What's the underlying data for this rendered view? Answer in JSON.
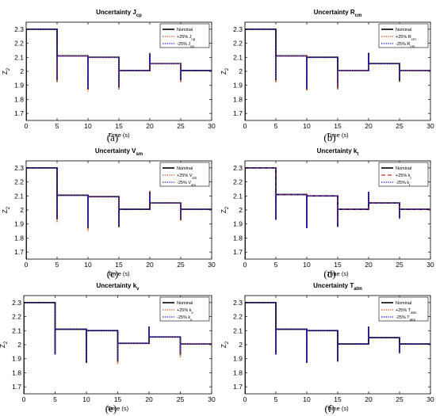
{
  "figure": {
    "colors": {
      "nominal": "#000000",
      "plus25": "#c8501e",
      "minus25": "#1515e0",
      "plus25_dashed": "#c0281e"
    }
  },
  "chart_data": [
    {
      "type": "line",
      "id": "a",
      "title": "Uncertainty J",
      "title_sub": "cp",
      "xlabel": "Time (s)",
      "ylabel": "Z",
      "ylabel_sub": "2",
      "caption": "(a)",
      "xlim": [
        0,
        30
      ],
      "ylim": [
        1.65,
        2.35
      ],
      "xticks": [
        "0",
        "5",
        "10",
        "15",
        "20",
        "25",
        "30"
      ],
      "yticks": [
        "1.7",
        "1.8",
        "1.9",
        "2",
        "2.1",
        "2.2",
        "2.3"
      ],
      "grid": false,
      "legend_position": "top-right",
      "series": [
        {
          "name": "Nominal",
          "name_sub": "",
          "style": "solid"
        },
        {
          "name": "+25% J",
          "name_sub": "cp",
          "style": "dotted"
        },
        {
          "name": "-25% J",
          "name_sub": "cp",
          "style": "dotted"
        }
      ],
      "levels": [
        [
          0,
          2.3
        ],
        [
          5,
          2.11
        ],
        [
          10,
          2.1
        ],
        [
          15,
          2.005
        ],
        [
          20,
          2.055
        ],
        [
          25,
          2.005
        ],
        [
          30,
          2.005
        ]
      ],
      "transients": [
        {
          "t": 5,
          "nominal": 1.93,
          "plus25": 1.92,
          "minus25": 1.94
        },
        {
          "t": 10,
          "nominal": 1.87,
          "plus25": 1.855,
          "minus25": 1.88
        },
        {
          "t": 15,
          "nominal": 1.88,
          "plus25": 1.87,
          "minus25": 1.89
        },
        {
          "t": 20,
          "nominal": 2.13,
          "plus25": 2.135,
          "minus25": 2.125
        },
        {
          "t": 25,
          "nominal": 1.93,
          "plus25": 1.92,
          "minus25": 1.94
        }
      ],
      "start_low": 1.65
    },
    {
      "type": "line",
      "id": "b",
      "title": "Uncertainty R",
      "title_sub": "cm",
      "xlabel": "Time (s)",
      "ylabel": "Z",
      "ylabel_sub": "2",
      "caption": "(b)",
      "xlim": [
        0,
        30
      ],
      "ylim": [
        1.65,
        2.35
      ],
      "xticks": [
        "0",
        "5",
        "10",
        "15",
        "20",
        "25",
        "30"
      ],
      "yticks": [
        "1.7",
        "1.8",
        "1.9",
        "2",
        "2.1",
        "2.2",
        "2.3"
      ],
      "grid": false,
      "legend_position": "top-right",
      "series": [
        {
          "name": "Nominal",
          "name_sub": "",
          "style": "solid"
        },
        {
          "name": "+25% R",
          "name_sub": "cm",
          "style": "dotted"
        },
        {
          "name": "-25% R",
          "name_sub": "cm",
          "style": "dotted"
        }
      ],
      "levels": [
        [
          0,
          2.3
        ],
        [
          5,
          2.11
        ],
        [
          10,
          2.1
        ],
        [
          15,
          2.005
        ],
        [
          20,
          2.055
        ],
        [
          25,
          2.005
        ],
        [
          30,
          2.005
        ]
      ],
      "transients": [
        {
          "t": 5,
          "nominal": 1.93,
          "plus25": 1.92,
          "minus25": 1.94
        },
        {
          "t": 10,
          "nominal": 1.87,
          "plus25": 1.86,
          "minus25": 1.88
        },
        {
          "t": 15,
          "nominal": 1.88,
          "plus25": 1.87,
          "minus25": 1.89
        },
        {
          "t": 20,
          "nominal": 2.13,
          "plus25": 2.135,
          "minus25": 2.125
        },
        {
          "t": 25,
          "nominal": 1.93,
          "plus25": 1.92,
          "minus25": 1.94
        }
      ],
      "start_low": 1.65
    },
    {
      "type": "line",
      "id": "c",
      "title": "Uncertainty V",
      "title_sub": "sm",
      "xlabel": "Time (s)",
      "ylabel": "Z",
      "ylabel_sub": "2",
      "caption": "(c)",
      "xlim": [
        0,
        30
      ],
      "ylim": [
        1.65,
        2.35
      ],
      "xticks": [
        "0",
        "5",
        "10",
        "15",
        "20",
        "25",
        "30"
      ],
      "yticks": [
        "1.7",
        "1.8",
        "1.9",
        "2",
        "2.1",
        "2.2",
        "2.3"
      ],
      "grid": false,
      "legend_position": "top-right",
      "series": [
        {
          "name": "Nominal",
          "name_sub": "",
          "style": "solid"
        },
        {
          "name": "+25% V",
          "name_sub": "sm",
          "style": "dotted"
        },
        {
          "name": "-25% V",
          "name_sub": "sm",
          "style": "dotted"
        }
      ],
      "levels": [
        [
          0,
          2.3
        ],
        [
          5,
          2.105
        ],
        [
          10,
          2.095
        ],
        [
          15,
          2.005
        ],
        [
          20,
          2.05
        ],
        [
          25,
          2.005
        ],
        [
          30,
          2.005
        ]
      ],
      "transients": [
        {
          "t": 5,
          "nominal": 1.93,
          "plus25": 1.91,
          "minus25": 1.94
        },
        {
          "t": 10,
          "nominal": 1.87,
          "plus25": 1.85,
          "minus25": 1.88
        },
        {
          "t": 15,
          "nominal": 1.88,
          "plus25": 1.87,
          "minus25": 1.89
        },
        {
          "t": 20,
          "nominal": 2.13,
          "plus25": 2.14,
          "minus25": 2.12
        },
        {
          "t": 25,
          "nominal": 1.93,
          "plus25": 1.92,
          "minus25": 1.94
        }
      ],
      "start_low": 1.65
    },
    {
      "type": "line",
      "id": "d",
      "title": "Uncertainty k",
      "title_sub": "t",
      "xlabel": "Time (s)",
      "ylabel": "Z",
      "ylabel_sub": "2",
      "caption": "(d)",
      "xlim": [
        0,
        30
      ],
      "ylim": [
        1.65,
        2.35
      ],
      "xticks": [
        "0",
        "5",
        "10",
        "15",
        "20",
        "25",
        "30"
      ],
      "yticks": [
        "1.7",
        "1.8",
        "1.9",
        "2",
        "2.1",
        "2.2",
        "2.3"
      ],
      "grid": false,
      "legend_position": "top-right",
      "series": [
        {
          "name": "Nominal",
          "name_sub": "",
          "style": "solid"
        },
        {
          "name": "+25% k",
          "name_sub": "t",
          "style": "dashed"
        },
        {
          "name": "-25% k",
          "name_sub": "t",
          "style": "dotted"
        }
      ],
      "levels": [
        [
          0,
          2.3
        ],
        [
          5,
          2.11
        ],
        [
          10,
          2.1
        ],
        [
          15,
          2.005
        ],
        [
          20,
          2.05
        ],
        [
          25,
          2.005
        ],
        [
          30,
          2.005
        ]
      ],
      "transients": [
        {
          "t": 5,
          "nominal": 1.93,
          "plus25": 1.93,
          "minus25": 1.93
        },
        {
          "t": 10,
          "nominal": 1.87,
          "plus25": 1.87,
          "minus25": 1.87
        },
        {
          "t": 15,
          "nominal": 1.88,
          "plus25": 1.88,
          "minus25": 1.88
        },
        {
          "t": 20,
          "nominal": 2.13,
          "plus25": 2.13,
          "minus25": 2.13
        },
        {
          "t": 25,
          "nominal": 1.94,
          "plus25": 1.94,
          "minus25": 1.94
        }
      ],
      "start_low": 1.65
    },
    {
      "type": "line",
      "id": "e",
      "title": "Uncertainty k",
      "title_sub": "v",
      "xlabel": "Time (s)",
      "ylabel": "Z",
      "ylabel_sub": "2",
      "caption": "(e)",
      "xlim": [
        0,
        30
      ],
      "ylim": [
        1.65,
        2.35
      ],
      "xticks": [
        "0",
        "5",
        "10",
        "15",
        "20",
        "25",
        "30"
      ],
      "yticks": [
        "1.7",
        "1.8",
        "1.9",
        "2",
        "2.1",
        "2.2",
        "2.3"
      ],
      "grid": false,
      "legend_position": "top-right",
      "series": [
        {
          "name": "Nominal",
          "name_sub": "",
          "style": "solid"
        },
        {
          "name": "+25% k",
          "name_sub": "v",
          "style": "dotted"
        },
        {
          "name": "-25% k",
          "name_sub": "v",
          "style": "dotted"
        }
      ],
      "levels": [
        [
          0,
          2.3
        ],
        [
          5,
          2.11
        ],
        [
          10,
          2.1
        ],
        [
          15,
          2.01
        ],
        [
          20,
          2.055
        ],
        [
          25,
          2.005
        ],
        [
          30,
          2.005
        ]
      ],
      "transients": [
        {
          "t": 5,
          "nominal": 1.93,
          "plus25": 1.93,
          "minus25": 1.93
        },
        {
          "t": 10,
          "nominal": 1.87,
          "plus25": 1.87,
          "minus25": 1.87
        },
        {
          "t": 15,
          "nominal": 1.88,
          "plus25": 1.86,
          "minus25": 1.89
        },
        {
          "t": 20,
          "nominal": 2.13,
          "plus25": 2.13,
          "minus25": 2.13
        },
        {
          "t": 25,
          "nominal": 1.93,
          "plus25": 1.91,
          "minus25": 1.94
        }
      ],
      "start_low": 1.65
    },
    {
      "type": "line",
      "id": "f",
      "title": "Uncertainty T",
      "title_sub": "atm",
      "xlabel": "Time (s)",
      "ylabel": "Z",
      "ylabel_sub": "2",
      "caption": "(f)",
      "xlim": [
        0,
        30
      ],
      "ylim": [
        1.65,
        2.35
      ],
      "xticks": [
        "0",
        "5",
        "10",
        "15",
        "20",
        "25",
        "30"
      ],
      "yticks": [
        "1.7",
        "1.8",
        "1.9",
        "2",
        "2.1",
        "2.2",
        "2.3"
      ],
      "grid": false,
      "legend_position": "top-right",
      "series": [
        {
          "name": "Nominal",
          "name_sub": "",
          "style": "solid"
        },
        {
          "name": "+25% T",
          "name_sub": "atm",
          "style": "dotted"
        },
        {
          "name": "-25% T",
          "name_sub": "atm",
          "style": "dotted"
        }
      ],
      "levels": [
        [
          0,
          2.3
        ],
        [
          5,
          2.11
        ],
        [
          10,
          2.1
        ],
        [
          15,
          2.005
        ],
        [
          20,
          2.05
        ],
        [
          25,
          2.005
        ],
        [
          30,
          2.005
        ]
      ],
      "transients": [
        {
          "t": 5,
          "nominal": 1.93,
          "plus25": 1.93,
          "minus25": 1.93
        },
        {
          "t": 10,
          "nominal": 1.87,
          "plus25": 1.87,
          "minus25": 1.87
        },
        {
          "t": 15,
          "nominal": 1.88,
          "plus25": 1.88,
          "minus25": 1.88
        },
        {
          "t": 20,
          "nominal": 2.13,
          "plus25": 2.13,
          "minus25": 2.13
        },
        {
          "t": 25,
          "nominal": 1.94,
          "plus25": 1.94,
          "minus25": 1.94
        }
      ],
      "start_low": 1.65
    }
  ]
}
